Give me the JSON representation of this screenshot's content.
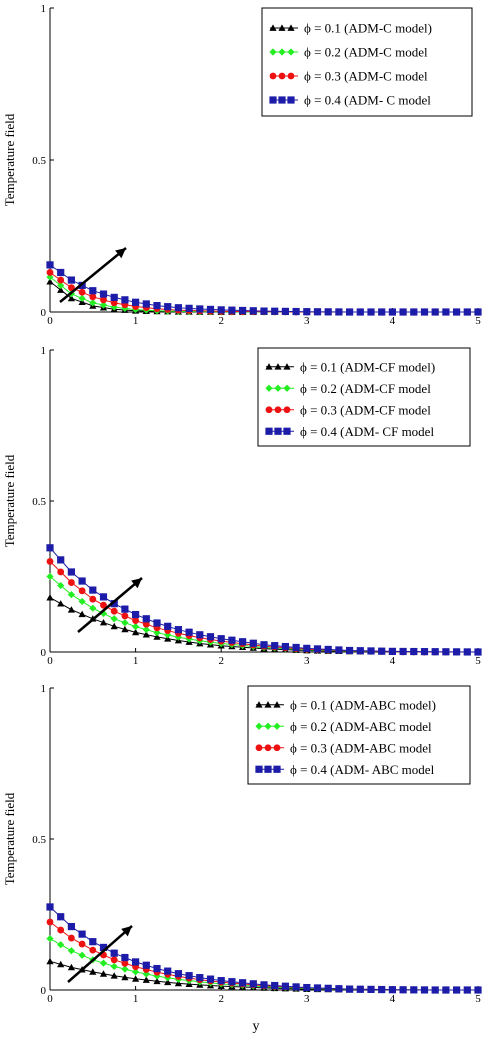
{
  "colors": {
    "phi_0_1": "#000000",
    "phi_0_2": "#22ee22",
    "phi_0_3": "#ee1111",
    "phi_0_4": "#1c1ca8",
    "arrow": "#000000"
  },
  "shared_xlabel": "y",
  "chart_data": [
    {
      "type": "line",
      "ylabel": "Temperature field",
      "xlim": [
        0,
        5
      ],
      "ylim": [
        0,
        1
      ],
      "xticks": [
        "0",
        "1",
        "2",
        "3",
        "4",
        "5"
      ],
      "yticks": [
        "0",
        "0.5",
        "1"
      ],
      "legend_position": "top-right",
      "x": [
        0,
        0.25,
        0.5,
        0.75,
        1,
        1.25,
        1.5,
        1.75,
        2,
        2.5,
        3,
        3.5,
        4,
        4.5,
        5
      ],
      "series": [
        {
          "name": "ϕ = 0.1 (ADM-C model)",
          "marker": "triangle",
          "values": [
            0.1,
            0.045,
            0.02,
            0.009,
            0.004,
            0.002,
            0.001,
            0.0005,
            0.0002,
            0,
            0,
            0,
            0,
            0,
            0
          ]
        },
        {
          "name": "ϕ = 0.2 (ADM-C model",
          "marker": "diamond",
          "values": [
            0.115,
            0.06,
            0.03,
            0.016,
            0.008,
            0.004,
            0.002,
            0.001,
            0.0005,
            0,
            0,
            0,
            0,
            0,
            0
          ]
        },
        {
          "name": "ϕ = 0.3 (ADM-C model",
          "marker": "circle",
          "values": [
            0.13,
            0.08,
            0.05,
            0.03,
            0.018,
            0.011,
            0.006,
            0.004,
            0.002,
            0.001,
            0,
            0,
            0,
            0,
            0
          ]
        },
        {
          "name": "ϕ = 0.4  (ADM- C model",
          "marker": "square",
          "values": [
            0.155,
            0.105,
            0.07,
            0.048,
            0.032,
            0.021,
            0.014,
            0.01,
            0.007,
            0.003,
            0.001,
            0,
            0,
            0,
            0
          ]
        }
      ]
    },
    {
      "type": "line",
      "ylabel": "Temperature field",
      "xlim": [
        0,
        5
      ],
      "ylim": [
        0,
        1
      ],
      "xticks": [
        "0",
        "1",
        "2",
        "3",
        "4",
        "5"
      ],
      "yticks": [
        "0",
        "0.5",
        "1"
      ],
      "legend_position": "top-right",
      "x": [
        0,
        0.25,
        0.5,
        0.75,
        1,
        1.25,
        1.5,
        1.75,
        2,
        2.5,
        3,
        3.5,
        4,
        4.5,
        5
      ],
      "series": [
        {
          "name": "ϕ = 0.1 (ADM-CF model)",
          "marker": "triangle",
          "values": [
            0.18,
            0.14,
            0.11,
            0.085,
            0.065,
            0.05,
            0.038,
            0.028,
            0.021,
            0.011,
            0.005,
            0.002,
            0.001,
            0,
            0
          ]
        },
        {
          "name": "ϕ = 0.2 (ADM-CF model",
          "marker": "diamond",
          "values": [
            0.25,
            0.19,
            0.145,
            0.11,
            0.084,
            0.064,
            0.049,
            0.037,
            0.028,
            0.015,
            0.007,
            0.003,
            0.001,
            0,
            0
          ]
        },
        {
          "name": "ϕ = 0.3 (ADM-CF model",
          "marker": "circle",
          "values": [
            0.3,
            0.23,
            0.175,
            0.135,
            0.104,
            0.08,
            0.062,
            0.047,
            0.036,
            0.019,
            0.009,
            0.004,
            0.001,
            0,
            0
          ]
        },
        {
          "name": "ϕ = 0.4 (ADM- CF model",
          "marker": "square",
          "values": [
            0.345,
            0.265,
            0.205,
            0.16,
            0.124,
            0.096,
            0.074,
            0.057,
            0.044,
            0.024,
            0.012,
            0.005,
            0.002,
            0.001,
            0
          ]
        }
      ]
    },
    {
      "type": "line",
      "ylabel": "Temperature field",
      "xlim": [
        0,
        5
      ],
      "ylim": [
        0,
        1
      ],
      "xticks": [
        "0",
        "1",
        "2",
        "3",
        "4",
        "5"
      ],
      "yticks": [
        "0",
        "0.5",
        "1"
      ],
      "legend_position": "top-right",
      "x": [
        0,
        0.25,
        0.5,
        0.75,
        1,
        1.25,
        1.5,
        1.75,
        2,
        2.5,
        3,
        3.5,
        4,
        4.5,
        5
      ],
      "series": [
        {
          "name": "ϕ = 0.1 (ADM-ABC model)",
          "marker": "triangle",
          "values": [
            0.095,
            0.075,
            0.06,
            0.047,
            0.037,
            0.029,
            0.022,
            0.017,
            0.013,
            0.007,
            0.003,
            0.001,
            0,
            0,
            0
          ]
        },
        {
          "name": "ϕ = 0.2 (ADM-ABC model",
          "marker": "diamond",
          "values": [
            0.17,
            0.13,
            0.1,
            0.078,
            0.06,
            0.046,
            0.035,
            0.027,
            0.02,
            0.011,
            0.005,
            0.002,
            0.001,
            0,
            0
          ]
        },
        {
          "name": "ϕ = 0.3 (ADM-ABC model",
          "marker": "circle",
          "values": [
            0.225,
            0.172,
            0.132,
            0.1,
            0.077,
            0.059,
            0.045,
            0.034,
            0.026,
            0.014,
            0.007,
            0.003,
            0.001,
            0,
            0
          ]
        },
        {
          "name": "ϕ = 0.4 (ADM- ABC model",
          "marker": "square",
          "values": [
            0.275,
            0.21,
            0.16,
            0.122,
            0.093,
            0.071,
            0.054,
            0.041,
            0.031,
            0.017,
            0.008,
            0.003,
            0.001,
            0,
            0
          ]
        }
      ]
    }
  ]
}
